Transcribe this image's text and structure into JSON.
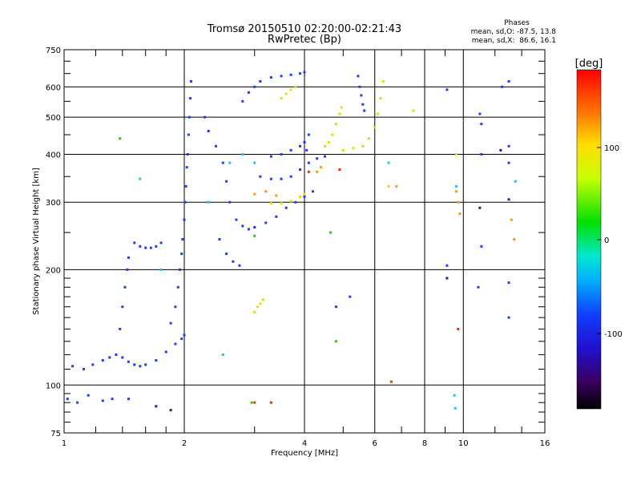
{
  "title": {
    "line1": "Tromsø 20150510 02:20:00-02:21:43",
    "line2": "RwPretec (Bp)"
  },
  "stats": {
    "heading": "Phases",
    "line_o": "mean, sd,O: -87.5, 13.8",
    "line_x": "mean, sd,X:  86.6, 16.1"
  },
  "colorbar": {
    "unit": "[deg]",
    "ticks": [
      "100",
      "0",
      "-100"
    ]
  },
  "colors": {
    "blue": "#1e3cff",
    "yellow": "#e6dc00",
    "orange": "#ff9a00",
    "red": "#ff2a00",
    "green": "#30c800",
    "cyan": "#18c8f0",
    "teal": "#1aa0d8",
    "navy": "#2a1aa0"
  },
  "chart_data": {
    "type": "scatter",
    "title": "Tromsø 20150510 02:20:00-02:21:43",
    "subtitle": "RwPretec (Bp)",
    "xlabel": "Frequency [MHz]",
    "ylabel": "Stationary phase Virtual Height [km]",
    "x_scale": "log",
    "y_scale": "log",
    "xlim": [
      1,
      16
    ],
    "ylim": [
      75,
      750
    ],
    "x_ticks": [
      1,
      2,
      4,
      6,
      8,
      10,
      16
    ],
    "y_ticks": [
      75,
      100,
      200,
      300,
      400,
      500,
      600,
      750
    ],
    "grid": true,
    "color_scale": {
      "label": "[deg]",
      "min": -180,
      "max": 180,
      "ticks": [
        100,
        0,
        -100
      ]
    },
    "series": [
      {
        "color": "blue",
        "points": [
          [
            1.02,
            92
          ],
          [
            1.08,
            90
          ],
          [
            1.15,
            94
          ],
          [
            1.25,
            91
          ],
          [
            1.32,
            92
          ],
          [
            1.45,
            92
          ],
          [
            1.05,
            112
          ],
          [
            1.12,
            110
          ],
          [
            1.18,
            113
          ],
          [
            1.25,
            116
          ],
          [
            1.3,
            118
          ],
          [
            1.35,
            120
          ],
          [
            1.4,
            118
          ],
          [
            1.45,
            115
          ],
          [
            1.5,
            113
          ],
          [
            1.55,
            112
          ],
          [
            1.6,
            113
          ],
          [
            1.7,
            116
          ],
          [
            1.8,
            122
          ],
          [
            1.9,
            128
          ],
          [
            1.97,
            132
          ],
          [
            2.0,
            135
          ],
          [
            1.38,
            140
          ],
          [
            1.4,
            160
          ],
          [
            1.42,
            180
          ],
          [
            1.44,
            200
          ],
          [
            1.45,
            215
          ],
          [
            1.5,
            235
          ],
          [
            1.55,
            230
          ],
          [
            1.6,
            228
          ],
          [
            1.65,
            228
          ],
          [
            1.7,
            230
          ],
          [
            1.75,
            235
          ],
          [
            1.85,
            145
          ],
          [
            1.9,
            160
          ],
          [
            1.93,
            180
          ],
          [
            1.95,
            200
          ],
          [
            1.97,
            220
          ],
          [
            1.98,
            240
          ],
          [
            2.0,
            270
          ],
          [
            2.01,
            300
          ],
          [
            2.02,
            330
          ],
          [
            2.03,
            370
          ],
          [
            2.04,
            400
          ],
          [
            2.05,
            450
          ],
          [
            2.06,
            500
          ],
          [
            2.07,
            560
          ],
          [
            2.08,
            620
          ],
          [
            2.25,
            500
          ],
          [
            2.3,
            460
          ],
          [
            2.4,
            420
          ],
          [
            2.5,
            380
          ],
          [
            2.55,
            340
          ],
          [
            2.6,
            300
          ],
          [
            2.7,
            270
          ],
          [
            2.8,
            260
          ],
          [
            2.9,
            255
          ],
          [
            3.0,
            258
          ],
          [
            3.2,
            265
          ],
          [
            3.4,
            275
          ],
          [
            3.6,
            290
          ],
          [
            3.8,
            300
          ],
          [
            4.0,
            310
          ],
          [
            4.2,
            320
          ],
          [
            2.45,
            240
          ],
          [
            2.55,
            220
          ],
          [
            2.65,
            210
          ],
          [
            2.75,
            205
          ],
          [
            2.8,
            550
          ],
          [
            2.9,
            580
          ],
          [
            3.0,
            600
          ],
          [
            3.1,
            620
          ],
          [
            3.3,
            635
          ],
          [
            3.5,
            640
          ],
          [
            3.7,
            645
          ],
          [
            3.9,
            650
          ],
          [
            4.0,
            655
          ],
          [
            3.1,
            350
          ],
          [
            3.3,
            345
          ],
          [
            3.5,
            345
          ],
          [
            3.7,
            350
          ],
          [
            3.9,
            365
          ],
          [
            4.1,
            380
          ],
          [
            4.3,
            390
          ],
          [
            4.5,
            395
          ],
          [
            3.3,
            395
          ],
          [
            3.5,
            400
          ],
          [
            3.7,
            410
          ],
          [
            3.9,
            420
          ],
          [
            4.0,
            430
          ],
          [
            4.05,
            410
          ],
          [
            4.1,
            450
          ],
          [
            4.8,
            160
          ],
          [
            5.2,
            170
          ],
          [
            5.45,
            640
          ],
          [
            5.5,
            600
          ],
          [
            5.55,
            570
          ],
          [
            5.6,
            540
          ],
          [
            5.65,
            520
          ],
          [
            9.1,
            590
          ],
          [
            11.0,
            510
          ],
          [
            11.1,
            480
          ],
          [
            12.5,
            600
          ],
          [
            13.0,
            620
          ],
          [
            13.0,
            420
          ],
          [
            13.0,
            380
          ],
          [
            11.1,
            400
          ],
          [
            10.9,
            180
          ],
          [
            13.0,
            185
          ],
          [
            11.1,
            230
          ],
          [
            13.0,
            150
          ],
          [
            9.1,
            205
          ]
        ]
      },
      {
        "color": "yellow",
        "points": [
          [
            3.3,
            298
          ],
          [
            3.5,
            298
          ],
          [
            3.7,
            302
          ],
          [
            3.9,
            310
          ],
          [
            4.0,
            315
          ],
          [
            3.5,
            560
          ],
          [
            3.6,
            575
          ],
          [
            3.7,
            590
          ],
          [
            3.8,
            600
          ],
          [
            4.5,
            420
          ],
          [
            4.6,
            430
          ],
          [
            4.7,
            450
          ],
          [
            4.8,
            480
          ],
          [
            4.9,
            510
          ],
          [
            4.95,
            530
          ],
          [
            5.0,
            410
          ],
          [
            5.3,
            415
          ],
          [
            5.6,
            420
          ],
          [
            5.8,
            440
          ],
          [
            6.0,
            470
          ],
          [
            6.1,
            510
          ],
          [
            6.2,
            560
          ],
          [
            6.3,
            620
          ],
          [
            3.0,
            155
          ],
          [
            3.05,
            160
          ],
          [
            3.1,
            163
          ],
          [
            3.15,
            167
          ],
          [
            6.5,
            330
          ],
          [
            7.5,
            520
          ],
          [
            9.6,
            400
          ]
        ]
      },
      {
        "color": "orange",
        "points": [
          [
            3.0,
            315
          ],
          [
            3.2,
            320
          ],
          [
            3.4,
            312
          ],
          [
            4.4,
            370
          ],
          [
            4.3,
            360
          ],
          [
            6.8,
            330
          ],
          [
            9.6,
            320
          ],
          [
            9.7,
            300
          ],
          [
            9.8,
            280
          ],
          [
            13.2,
            270
          ],
          [
            13.4,
            240
          ]
        ]
      },
      {
        "color": "red",
        "points": [
          [
            4.1,
            360
          ],
          [
            4.9,
            365
          ],
          [
            3.0,
            90
          ],
          [
            3.3,
            90
          ],
          [
            9.7,
            140
          ],
          [
            6.6,
            102
          ]
        ]
      },
      {
        "color": "green",
        "points": [
          [
            1.38,
            440
          ],
          [
            4.65,
            250
          ],
          [
            4.8,
            130
          ],
          [
            2.95,
            90
          ],
          [
            3.0,
            245
          ]
        ]
      },
      {
        "color": "cyan",
        "points": [
          [
            1.55,
            345
          ],
          [
            1.75,
            200
          ],
          [
            2.3,
            300
          ],
          [
            2.5,
            120
          ],
          [
            9.5,
            94
          ],
          [
            9.55,
            87
          ],
          [
            9.6,
            330
          ],
          [
            13.5,
            340
          ],
          [
            6.5,
            380
          ],
          [
            2.6,
            380
          ],
          [
            2.8,
            400
          ],
          [
            3.0,
            380
          ]
        ]
      },
      {
        "color": "navy",
        "points": [
          [
            1.7,
            88
          ],
          [
            1.85,
            86
          ],
          [
            9.1,
            190
          ],
          [
            11.0,
            290
          ],
          [
            13.0,
            305
          ],
          [
            12.4,
            410
          ]
        ]
      }
    ]
  }
}
